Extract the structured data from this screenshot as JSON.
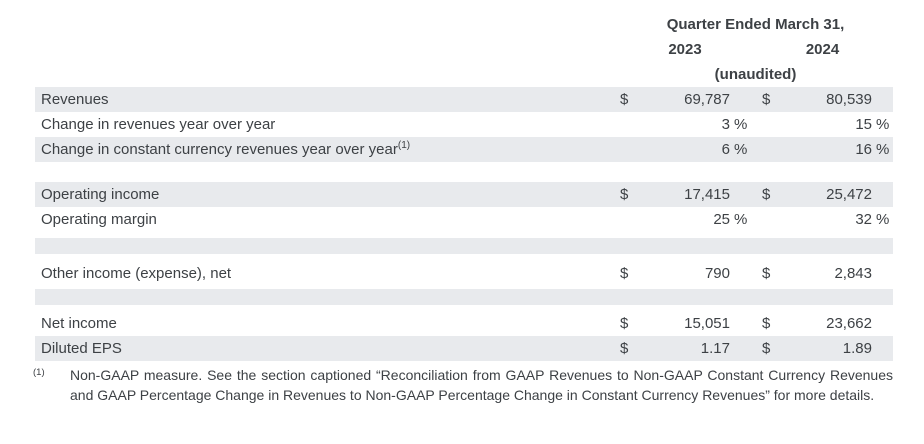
{
  "page": {
    "background": "#ffffff",
    "text_color": "#3d4145",
    "shade_color": "#e8eaed"
  },
  "table": {
    "header": {
      "title": "Quarter Ended March 31,",
      "col_2023": "2023",
      "col_2024": "2024",
      "subtitle": "(unaudited)"
    },
    "rows": [
      {
        "label": "Revenues",
        "cur_2023": "$",
        "val_2023": "69,787",
        "pct_2023": "",
        "cur_2024": "$",
        "val_2024": "80,539",
        "pct_2024": ""
      },
      {
        "label": "Change in revenues year over year",
        "cur_2023": "",
        "val_2023": "3",
        "pct_2023": "%",
        "cur_2024": "",
        "val_2024": "15",
        "pct_2024": "%"
      },
      {
        "label": "Change in constant currency revenues year over year",
        "footnote_ref": "(1)",
        "cur_2023": "",
        "val_2023": "6",
        "pct_2023": "%",
        "cur_2024": "",
        "val_2024": "16",
        "pct_2024": "%"
      },
      {
        "label": "Operating income",
        "cur_2023": "$",
        "val_2023": "17,415",
        "pct_2023": "",
        "cur_2024": "$",
        "val_2024": "25,472",
        "pct_2024": ""
      },
      {
        "label": "Operating margin",
        "cur_2023": "",
        "val_2023": "25",
        "pct_2023": "%",
        "cur_2024": "",
        "val_2024": "32",
        "pct_2024": "%"
      },
      {
        "label": "Other income (expense), net",
        "cur_2023": "$",
        "val_2023": "790",
        "pct_2023": "",
        "cur_2024": "$",
        "val_2024": "2,843",
        "pct_2024": ""
      },
      {
        "label": "Net income",
        "cur_2023": "$",
        "val_2023": "15,051",
        "pct_2023": "",
        "cur_2024": "$",
        "val_2024": "23,662",
        "pct_2024": ""
      },
      {
        "label": "Diluted EPS",
        "cur_2023": "$",
        "val_2023": "1.17",
        "pct_2023": "",
        "cur_2024": "$",
        "val_2024": "1.89",
        "pct_2024": ""
      }
    ]
  },
  "footnote": {
    "ref": "(1)",
    "text": "Non-GAAP measure. See the section captioned “Reconciliation from GAAP Revenues to Non-GAAP Constant Currency Revenues and GAAP Percentage Change in Revenues to Non-GAAP Percentage Change in Constant Currency Revenues” for more details."
  }
}
